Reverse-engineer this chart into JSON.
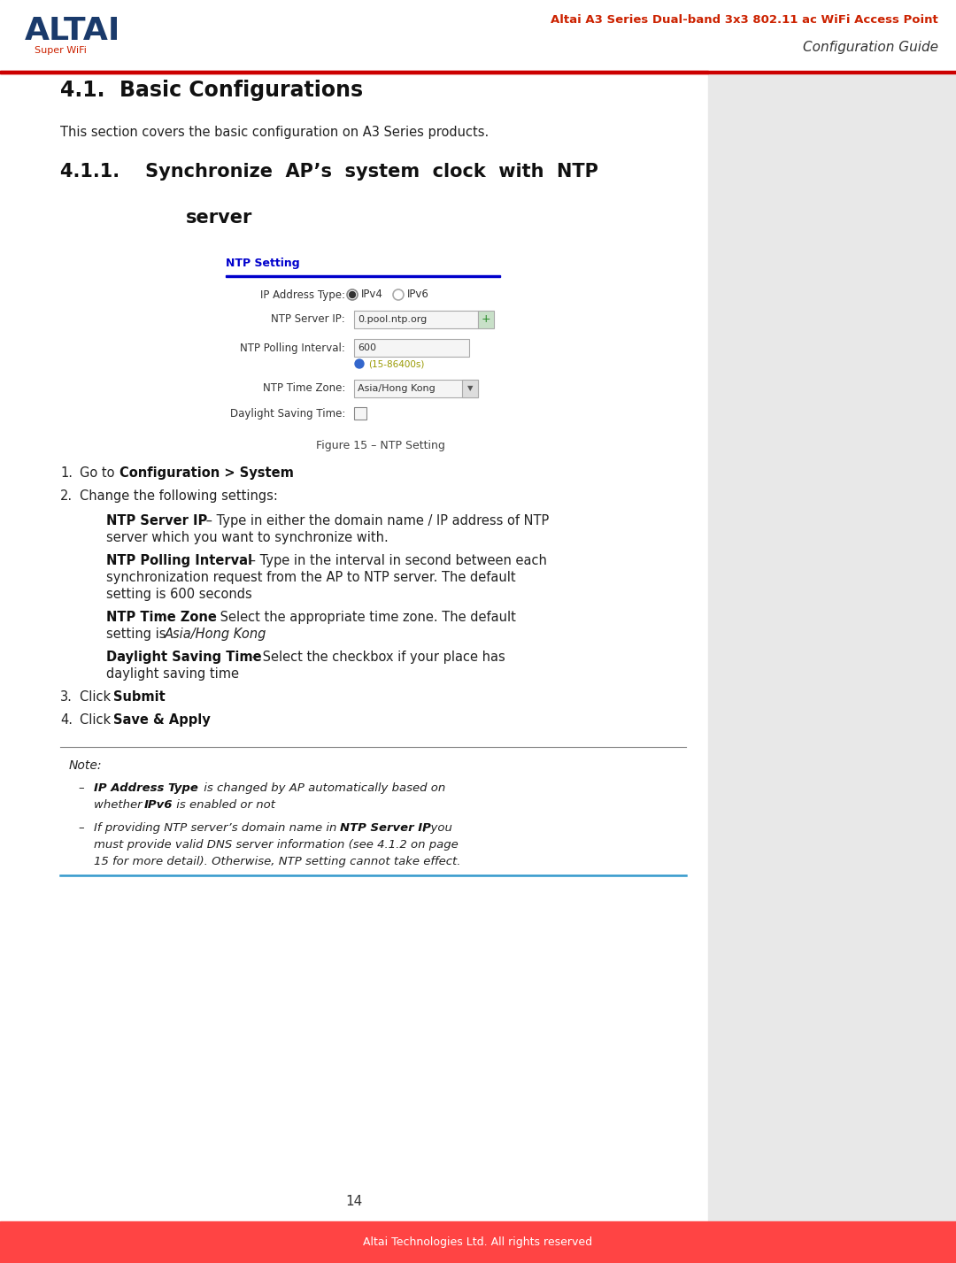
{
  "page_bg": "#f0f0f0",
  "content_bg": "#ffffff",
  "right_panel_bg": "#e8e8e8",
  "header_red_text": "Altai A3 Series Dual-band 3x3 802.11 ac WiFi Access Point",
  "header_gray_text": "Configuration Guide",
  "header_line_color": "#cc0000",
  "header_red_color": "#cc2200",
  "header_gray_color": "#333333",
  "altai_blue": "#1a3a6b",
  "altai_red": "#cc2200",
  "footer_text": "Altai Technologies Ltd. All rights reserved",
  "footer_bg": "#ff4444",
  "footer_text_color": "#ffffff",
  "page_number": "14",
  "ntp_title_color": "#0000cc",
  "ntp_line_color": "#0000cc",
  "note_top_line": "#888888",
  "note_bottom_line": "#3399cc",
  "text_dark": "#111111",
  "text_body": "#222222",
  "text_label": "#333333"
}
